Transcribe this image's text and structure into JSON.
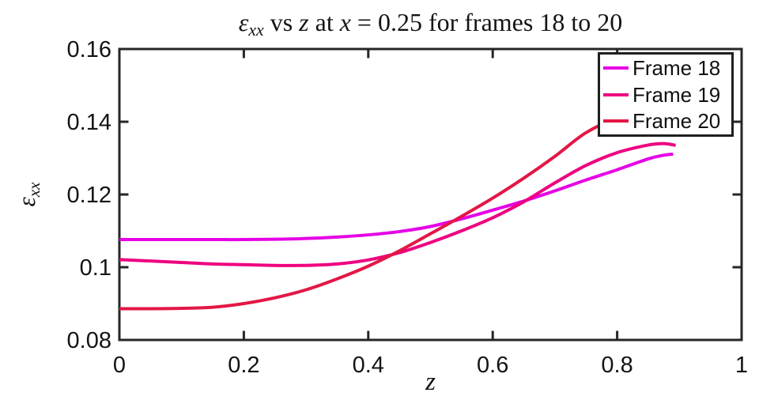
{
  "figure": {
    "background": "#FFFFFF",
    "text_color": "#141414",
    "axis_color": "#262626"
  },
  "chart_data": {
    "type": "line",
    "title": "ε_xx vs z at x = 0.25 for frames 18 to 20",
    "title_segments": [
      {
        "text": "ε",
        "style": "italic"
      },
      {
        "text": "xx",
        "style": "subscript"
      },
      {
        "text": " vs ",
        "style": "roman"
      },
      {
        "text": "z",
        "style": "italic"
      },
      {
        "text": " at ",
        "style": "roman"
      },
      {
        "text": "x",
        "style": "italic"
      },
      {
        "text": " = 0.25 for frames 18 to 20",
        "style": "roman"
      }
    ],
    "xlabel": "z",
    "ylabel": "ε_xx",
    "ylabel_segments": [
      {
        "text": "ε",
        "style": "italic"
      },
      {
        "text": "xx",
        "style": "subscript"
      }
    ],
    "xlim": [
      0,
      1
    ],
    "ylim": [
      0.08,
      0.16
    ],
    "xticks": {
      "values": [
        0,
        0.2,
        0.4,
        0.6,
        0.8,
        1
      ],
      "labels": [
        "0",
        "0.2",
        "0.4",
        "0.6",
        "0.8",
        "1"
      ]
    },
    "yticks": {
      "values": [
        0.08,
        0.1,
        0.12,
        0.14,
        0.16
      ],
      "labels": [
        "0.08",
        "0.1",
        "0.12",
        "0.14",
        "0.16"
      ]
    },
    "grid": false,
    "legend": {
      "position": "northeast",
      "border_color": "#1F1F1F",
      "background": "#FFFFFF"
    },
    "series": [
      {
        "name": "Frame 18",
        "color": "#E500E5",
        "x": [
          0,
          0.05,
          0.1,
          0.15,
          0.2,
          0.25,
          0.3,
          0.35,
          0.4,
          0.45,
          0.5,
          0.55,
          0.6,
          0.65,
          0.7,
          0.75,
          0.8,
          0.85,
          0.875,
          0.89
        ],
        "y": [
          0.1076,
          0.1076,
          0.1076,
          0.1076,
          0.1076,
          0.1077,
          0.1079,
          0.1083,
          0.1089,
          0.1098,
          0.1112,
          0.1133,
          0.1157,
          0.1182,
          0.121,
          0.124,
          0.1268,
          0.1298,
          0.1308,
          0.1311
        ]
      },
      {
        "name": "Frame 19",
        "color": "#EE0080",
        "x": [
          0,
          0.05,
          0.1,
          0.15,
          0.2,
          0.25,
          0.3,
          0.35,
          0.4,
          0.45,
          0.5,
          0.55,
          0.6,
          0.65,
          0.7,
          0.75,
          0.8,
          0.85,
          0.875,
          0.894
        ],
        "y": [
          0.1021,
          0.1017,
          0.1013,
          0.1009,
          0.1007,
          0.1005,
          0.1005,
          0.1009,
          0.102,
          0.104,
          0.1068,
          0.11,
          0.1136,
          0.118,
          0.1232,
          0.128,
          0.1315,
          0.1336,
          0.134,
          0.1335
        ]
      },
      {
        "name": "Frame 20",
        "color": "#E31745",
        "x": [
          0,
          0.05,
          0.1,
          0.15,
          0.2,
          0.25,
          0.3,
          0.35,
          0.4,
          0.45,
          0.5,
          0.55,
          0.6,
          0.65,
          0.7,
          0.75,
          0.8,
          0.85,
          0.89
        ],
        "y": [
          0.0886,
          0.0886,
          0.0887,
          0.089,
          0.09,
          0.0916,
          0.0938,
          0.0968,
          0.1003,
          0.1045,
          0.1092,
          0.114,
          0.119,
          0.1245,
          0.1305,
          0.137,
          0.1408,
          0.1418,
          0.1412
        ]
      }
    ]
  }
}
